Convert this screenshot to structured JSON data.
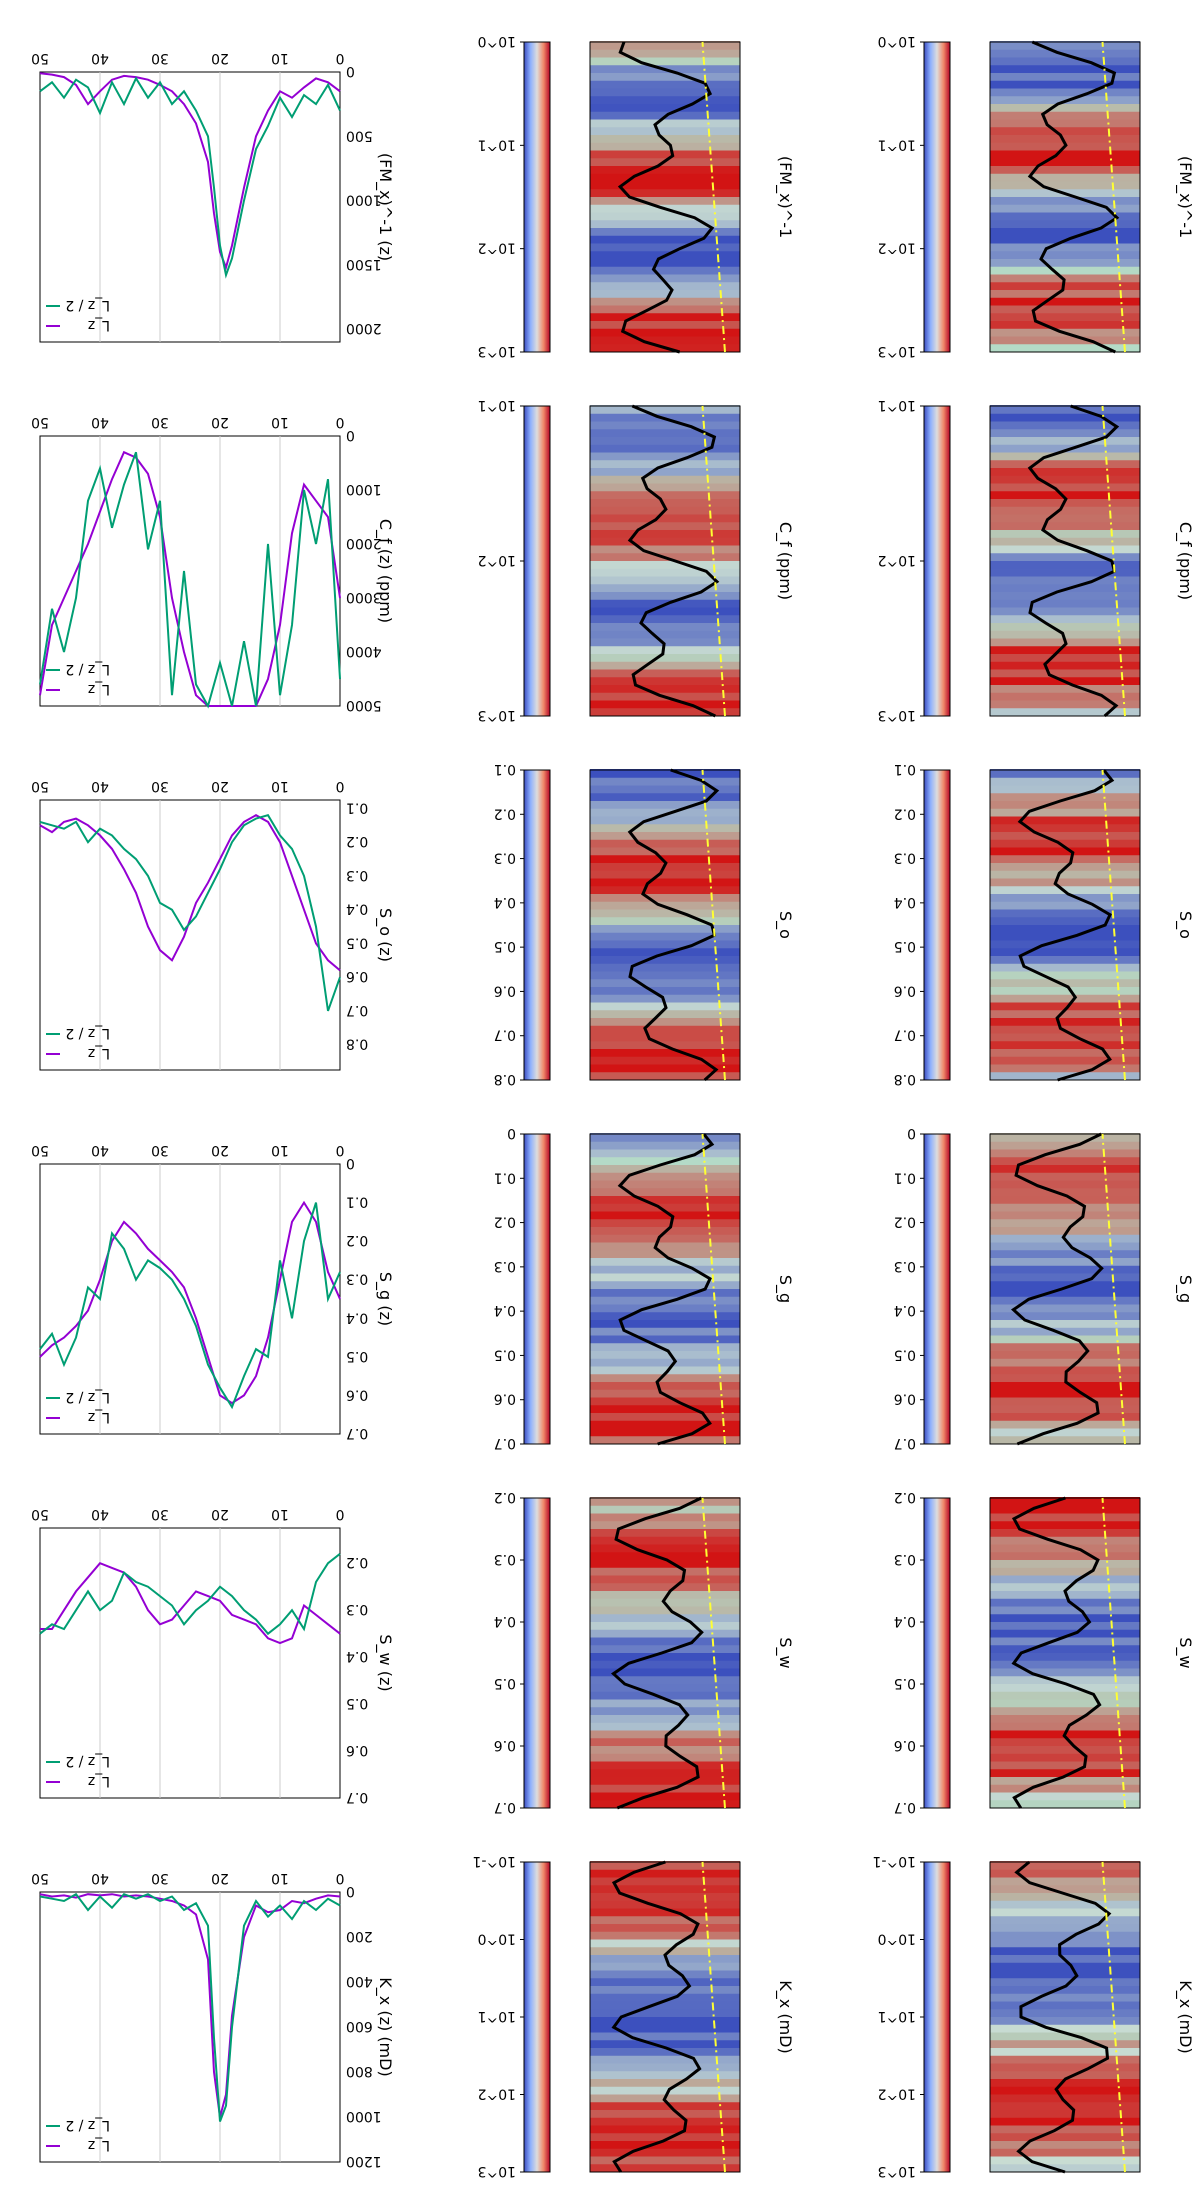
{
  "figure": {
    "rotation": "180deg (figure is shown upside down)",
    "columns": [
      "heatmap-left",
      "heatmap-right",
      "profile-lines"
    ]
  },
  "chart_data": [
    {
      "type": "heatmap",
      "row": "Kx",
      "label": "K_x (mD)",
      "colorbar_ticks": [
        "10^3",
        "10^2",
        "10^1",
        "10^0",
        "10^-1"
      ],
      "colorbar_scale": "log",
      "colormap": "coolwarm",
      "overlays": [
        "black profile line",
        "yellow dash-dot line"
      ]
    },
    {
      "type": "heatmap",
      "row": "Sw",
      "label": "S_w",
      "colorbar_ticks": [
        "0.7",
        "0.6",
        "0.5",
        "0.4",
        "0.3",
        "0.2"
      ],
      "colormap": "coolwarm"
    },
    {
      "type": "heatmap",
      "row": "Sg",
      "label": "S_g",
      "colorbar_ticks": [
        "0.7",
        "0.6",
        "0.5",
        "0.4",
        "0.3",
        "0.2",
        "0.1",
        "0"
      ],
      "colormap": "coolwarm"
    },
    {
      "type": "heatmap",
      "row": "So",
      "label": "S_o",
      "colorbar_ticks": [
        "0.8",
        "0.7",
        "0.6",
        "0.5",
        "0.4",
        "0.3",
        "0.2",
        "0.1"
      ],
      "colormap": "coolwarm"
    },
    {
      "type": "heatmap",
      "row": "Cf",
      "label": "C_f (ppm)",
      "colorbar_ticks": [
        "10^3",
        "10^2",
        "10^1"
      ],
      "colorbar_scale": "log",
      "colormap": "coolwarm"
    },
    {
      "type": "heatmap",
      "row": "FMx",
      "label": "(FM_x)^-1",
      "colorbar_ticks": [
        "10^3",
        "10^2",
        "10^1",
        "10^0"
      ],
      "colorbar_scale": "log",
      "colormap": "coolwarm"
    },
    {
      "type": "line",
      "row": "Kx",
      "ylabel": "K_x (z) (mD)",
      "xlabel": "",
      "z_ticks": [
        0,
        10,
        20,
        30,
        40,
        50
      ],
      "value_ticks": [
        0,
        200,
        400,
        600,
        800,
        1000,
        1200
      ],
      "zlim": [
        0,
        50
      ],
      "vlim": [
        0,
        1200
      ],
      "grid_z": [
        10,
        20,
        30,
        40
      ],
      "legend": [
        "L_z",
        "L_z / 2"
      ],
      "series": [
        {
          "name": "L_z",
          "color": "#9400d3",
          "z": [
            0,
            2,
            4,
            6,
            8,
            10,
            12,
            14,
            16,
            18,
            19,
            20,
            21,
            22,
            24,
            26,
            28,
            30,
            32,
            34,
            36,
            38,
            40,
            42,
            44,
            46,
            48,
            50
          ],
          "v": [
            20,
            15,
            30,
            50,
            40,
            80,
            90,
            60,
            200,
            550,
            900,
            1000,
            800,
            300,
            100,
            60,
            40,
            30,
            20,
            15,
            20,
            10,
            15,
            10,
            25,
            15,
            20,
            10
          ]
        },
        {
          "name": "L_z / 2",
          "color": "#009e73",
          "z": [
            0,
            2,
            4,
            6,
            8,
            10,
            12,
            14,
            16,
            18,
            19,
            20,
            21,
            22,
            24,
            26,
            28,
            30,
            32,
            34,
            36,
            38,
            40,
            42,
            44,
            46,
            48,
            50
          ],
          "v": [
            60,
            30,
            80,
            40,
            120,
            60,
            110,
            40,
            150,
            600,
            950,
            1020,
            650,
            150,
            50,
            80,
            20,
            40,
            10,
            30,
            10,
            70,
            20,
            80,
            10,
            40,
            30,
            20
          ]
        }
      ]
    },
    {
      "type": "line",
      "row": "Sw",
      "ylabel": "S_w (z)",
      "z_ticks": [
        0,
        10,
        20,
        30,
        40,
        50
      ],
      "value_ticks": [
        0.2,
        0.3,
        0.4,
        0.5,
        0.6,
        0.7
      ],
      "zlim": [
        0,
        50
      ],
      "vlim": [
        0.125,
        0.7
      ],
      "grid_z": [
        10,
        20,
        30,
        40
      ],
      "legend": [
        "L_z",
        "L_z / 2"
      ],
      "series": [
        {
          "name": "L_z",
          "color": "#9400d3",
          "z": [
            0,
            2,
            4,
            6,
            8,
            10,
            12,
            14,
            16,
            18,
            20,
            22,
            24,
            26,
            28,
            30,
            32,
            34,
            36,
            38,
            40,
            42,
            44,
            46,
            48,
            50
          ],
          "v": [
            0.35,
            0.33,
            0.31,
            0.29,
            0.36,
            0.37,
            0.36,
            0.33,
            0.32,
            0.31,
            0.28,
            0.27,
            0.26,
            0.29,
            0.32,
            0.33,
            0.3,
            0.25,
            0.22,
            0.21,
            0.2,
            0.23,
            0.26,
            0.3,
            0.34,
            0.34
          ]
        },
        {
          "name": "L_z / 2",
          "color": "#009e73",
          "z": [
            0,
            2,
            4,
            6,
            8,
            10,
            12,
            14,
            16,
            18,
            20,
            22,
            24,
            26,
            28,
            30,
            32,
            34,
            36,
            38,
            40,
            42,
            44,
            46,
            48,
            50
          ],
          "v": [
            0.18,
            0.2,
            0.24,
            0.34,
            0.3,
            0.33,
            0.35,
            0.32,
            0.3,
            0.27,
            0.25,
            0.28,
            0.3,
            0.33,
            0.29,
            0.27,
            0.25,
            0.24,
            0.22,
            0.28,
            0.3,
            0.26,
            0.3,
            0.34,
            0.33,
            0.35
          ]
        }
      ]
    },
    {
      "type": "line",
      "row": "Sg",
      "ylabel": "S_g (z)",
      "z_ticks": [
        0,
        10,
        20,
        30,
        40,
        50
      ],
      "value_ticks": [
        0,
        0.1,
        0.2,
        0.3,
        0.4,
        0.5,
        0.6,
        0.7
      ],
      "zlim": [
        0,
        50
      ],
      "vlim": [
        0,
        0.7
      ],
      "grid_z": [
        10,
        20,
        30,
        40
      ],
      "legend": [
        "L_z",
        "L_z / 2"
      ],
      "series": [
        {
          "name": "L_z",
          "color": "#9400d3",
          "z": [
            0,
            2,
            4,
            6,
            8,
            10,
            12,
            14,
            16,
            18,
            20,
            22,
            24,
            26,
            28,
            30,
            32,
            34,
            36,
            38,
            40,
            42,
            44,
            46,
            48,
            50
          ],
          "v": [
            0.35,
            0.28,
            0.15,
            0.1,
            0.15,
            0.3,
            0.45,
            0.55,
            0.6,
            0.62,
            0.6,
            0.5,
            0.4,
            0.32,
            0.28,
            0.25,
            0.22,
            0.18,
            0.15,
            0.2,
            0.3,
            0.38,
            0.42,
            0.45,
            0.47,
            0.5
          ]
        },
        {
          "name": "L_z / 2",
          "color": "#009e73",
          "z": [
            0,
            2,
            4,
            6,
            8,
            10,
            12,
            14,
            16,
            18,
            20,
            22,
            24,
            26,
            28,
            30,
            32,
            34,
            36,
            38,
            40,
            42,
            44,
            46,
            48,
            50
          ],
          "v": [
            0.28,
            0.35,
            0.1,
            0.2,
            0.4,
            0.25,
            0.5,
            0.48,
            0.55,
            0.63,
            0.58,
            0.52,
            0.42,
            0.35,
            0.3,
            0.27,
            0.25,
            0.3,
            0.22,
            0.18,
            0.35,
            0.32,
            0.45,
            0.52,
            0.44,
            0.48
          ]
        }
      ]
    },
    {
      "type": "line",
      "row": "So",
      "ylabel": "S_o (z)",
      "z_ticks": [
        0,
        10,
        20,
        30,
        40,
        50
      ],
      "value_ticks": [
        0.1,
        0.2,
        0.3,
        0.4,
        0.5,
        0.6,
        0.7,
        0.8
      ],
      "zlim": [
        0,
        50
      ],
      "vlim": [
        0.075,
        0.875
      ],
      "grid_z": [
        10,
        20,
        30,
        40
      ],
      "legend": [
        "L_z",
        "L_z / 2"
      ],
      "series": [
        {
          "name": "L_z",
          "color": "#9400d3",
          "z": [
            0,
            2,
            4,
            6,
            8,
            10,
            12,
            14,
            16,
            18,
            20,
            22,
            24,
            26,
            28,
            30,
            32,
            34,
            36,
            38,
            40,
            42,
            44,
            46,
            48,
            50
          ],
          "v": [
            0.58,
            0.55,
            0.5,
            0.4,
            0.3,
            0.2,
            0.14,
            0.12,
            0.14,
            0.18,
            0.25,
            0.32,
            0.38,
            0.48,
            0.55,
            0.52,
            0.45,
            0.35,
            0.28,
            0.22,
            0.18,
            0.15,
            0.13,
            0.14,
            0.17,
            0.15
          ]
        },
        {
          "name": "L_z / 2",
          "color": "#009e73",
          "z": [
            0,
            2,
            4,
            6,
            8,
            10,
            12,
            14,
            16,
            18,
            20,
            22,
            24,
            26,
            28,
            30,
            32,
            34,
            36,
            38,
            40,
            42,
            44,
            46,
            48,
            50
          ],
          "v": [
            0.6,
            0.7,
            0.45,
            0.3,
            0.22,
            0.18,
            0.12,
            0.13,
            0.15,
            0.2,
            0.28,
            0.35,
            0.42,
            0.46,
            0.4,
            0.38,
            0.3,
            0.25,
            0.22,
            0.18,
            0.16,
            0.2,
            0.14,
            0.16,
            0.15,
            0.14
          ]
        }
      ]
    },
    {
      "type": "line",
      "row": "Cf",
      "ylabel": "C_f (z) (ppm)",
      "z_ticks": [
        0,
        10,
        20,
        30,
        40,
        50
      ],
      "value_ticks": [
        0,
        1000,
        2000,
        3000,
        4000,
        5000
      ],
      "zlim": [
        0,
        50
      ],
      "vlim": [
        0,
        5000
      ],
      "grid_z": [
        10,
        20,
        30,
        40
      ],
      "legend": [
        "L_z",
        "L_z / 2"
      ],
      "series": [
        {
          "name": "L_z",
          "color": "#9400d3",
          "z": [
            0,
            2,
            4,
            6,
            8,
            10,
            12,
            14,
            16,
            18,
            20,
            22,
            24,
            26,
            28,
            30,
            32,
            34,
            36,
            38,
            40,
            42,
            44,
            46,
            48,
            50
          ],
          "v": [
            3000,
            1500,
            1200,
            900,
            1800,
            3500,
            4500,
            5000,
            5000,
            5000,
            5000,
            5000,
            4800,
            4000,
            3000,
            1500,
            700,
            400,
            300,
            800,
            1400,
            2000,
            2500,
            3000,
            3500,
            4800
          ]
        },
        {
          "name": "L_z / 2",
          "color": "#009e73",
          "z": [
            0,
            2,
            4,
            6,
            8,
            10,
            12,
            14,
            16,
            18,
            20,
            22,
            24,
            26,
            28,
            30,
            32,
            34,
            36,
            38,
            40,
            42,
            44,
            46,
            48,
            50
          ],
          "v": [
            4500,
            800,
            2000,
            1000,
            3500,
            4800,
            2000,
            5000,
            3800,
            5000,
            4200,
            5000,
            4600,
            2500,
            4800,
            1200,
            2100,
            300,
            900,
            1700,
            600,
            1200,
            3000,
            4000,
            3200,
            4600
          ]
        }
      ]
    },
    {
      "type": "line",
      "row": "FMx",
      "ylabel": "(FM_x)^-1 (z)",
      "z_ticks": [
        0,
        10,
        20,
        30,
        40,
        50
      ],
      "value_ticks": [
        0,
        500,
        1000,
        1500,
        2000
      ],
      "zlim": [
        0,
        50
      ],
      "vlim": [
        0,
        2100
      ],
      "grid_z": [
        10,
        20,
        30,
        40
      ],
      "legend": [
        "L_z",
        "L_z / 2"
      ],
      "series": [
        {
          "name": "L_z",
          "color": "#9400d3",
          "z": [
            0,
            2,
            4,
            6,
            8,
            10,
            12,
            14,
            16,
            18,
            19,
            20,
            21,
            22,
            24,
            26,
            28,
            30,
            32,
            34,
            36,
            38,
            40,
            42,
            44,
            46,
            48,
            50
          ],
          "v": [
            150,
            80,
            50,
            120,
            200,
            150,
            300,
            500,
            900,
            1350,
            1520,
            1400,
            1100,
            700,
            400,
            250,
            150,
            100,
            60,
            40,
            30,
            60,
            150,
            250,
            100,
            40,
            20,
            10
          ]
        },
        {
          "name": "L_z / 2",
          "color": "#009e73",
          "z": [
            0,
            2,
            4,
            6,
            8,
            10,
            12,
            14,
            16,
            18,
            19,
            20,
            21,
            22,
            24,
            26,
            28,
            30,
            32,
            34,
            36,
            38,
            40,
            42,
            44,
            46,
            48,
            50
          ],
          "v": [
            300,
            100,
            250,
            180,
            350,
            200,
            420,
            600,
            1000,
            1450,
            1580,
            1350,
            900,
            500,
            300,
            150,
            250,
            80,
            200,
            50,
            250,
            80,
            320,
            120,
            60,
            200,
            80,
            150
          ]
        }
      ]
    }
  ]
}
